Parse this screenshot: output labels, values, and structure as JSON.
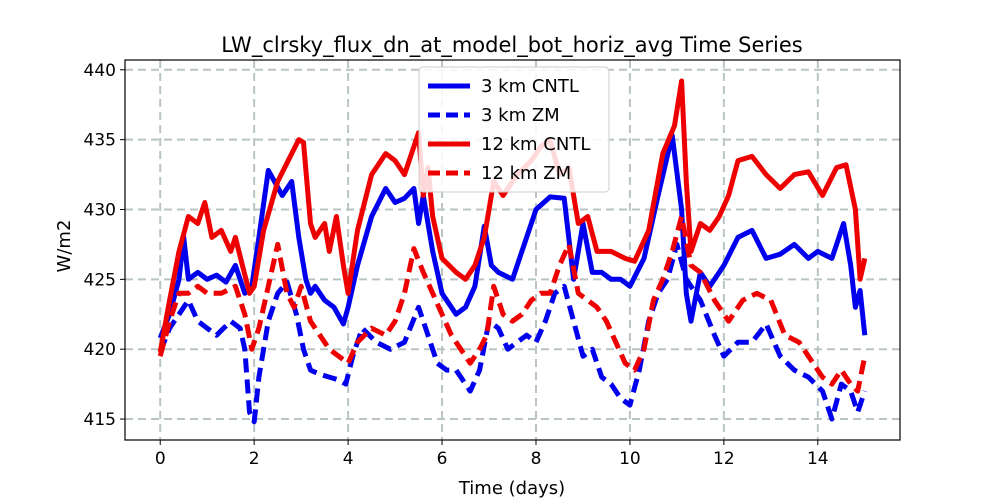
{
  "chart_data": {
    "type": "line",
    "title": "LW_clrsky_flux_dn_at_model_bot_horiz_avg Time Series",
    "xlabel": "Time (days)",
    "ylabel": "W/m2",
    "xlim": [
      -0.75,
      15.75
    ],
    "ylim": [
      413.5,
      440.7
    ],
    "xticks": [
      0,
      2,
      4,
      6,
      8,
      10,
      12,
      14
    ],
    "yticks": [
      415,
      420,
      425,
      430,
      435,
      440
    ],
    "grid": true,
    "legend_position": "top-center",
    "series": [
      {
        "name": "3 km CNTL",
        "color": "#0000ee",
        "style": "solid",
        "x": [
          0,
          0.2,
          0.4,
          0.5,
          0.6,
          0.8,
          1.0,
          1.2,
          1.4,
          1.6,
          1.8,
          1.95,
          2.1,
          2.3,
          2.6,
          2.8,
          2.95,
          3.1,
          3.2,
          3.3,
          3.5,
          3.7,
          3.9,
          4.0,
          4.2,
          4.5,
          4.8,
          5.0,
          5.2,
          5.4,
          5.5,
          5.6,
          5.8,
          6.0,
          6.3,
          6.5,
          6.7,
          6.9,
          7.05,
          7.2,
          7.5,
          7.8,
          8.0,
          8.3,
          8.6,
          8.8,
          9.0,
          9.2,
          9.4,
          9.6,
          9.8,
          10.0,
          10.3,
          10.6,
          10.9,
          11.1,
          11.2,
          11.3,
          11.5,
          11.7,
          12.0,
          12.3,
          12.6,
          12.9,
          13.2,
          13.5,
          13.8,
          14.0,
          14.3,
          14.55,
          14.7,
          14.8,
          14.9,
          15.0
        ],
        "values": [
          420.8,
          422.5,
          425.0,
          428.0,
          425.0,
          425.5,
          425.0,
          425.3,
          424.8,
          426.0,
          424.0,
          424.5,
          428.0,
          432.8,
          431.0,
          432.0,
          428.0,
          425.0,
          424.0,
          424.5,
          423.5,
          423.0,
          421.8,
          423.0,
          426.0,
          429.5,
          431.5,
          430.5,
          430.8,
          431.5,
          429.0,
          431.0,
          427.0,
          424.0,
          422.5,
          423.0,
          424.5,
          428.8,
          426.0,
          425.5,
          425.0,
          428.0,
          430.0,
          430.9,
          430.8,
          425.0,
          429.0,
          425.5,
          425.5,
          425.0,
          425.0,
          424.5,
          426.5,
          431.0,
          435.3,
          430.0,
          424.0,
          422.0,
          425.5,
          424.5,
          426.0,
          428.0,
          428.5,
          426.5,
          426.8,
          427.5,
          426.5,
          427.0,
          426.5,
          429.0,
          426.0,
          423.0,
          424.2,
          421.0
        ]
      },
      {
        "name": "3 km ZM",
        "color": "#0000ee",
        "style": "dashed",
        "x": [
          0,
          0.2,
          0.4,
          0.6,
          0.8,
          1.0,
          1.2,
          1.5,
          1.7,
          1.8,
          1.9,
          2.0,
          2.1,
          2.3,
          2.5,
          2.7,
          2.9,
          3.05,
          3.2,
          3.4,
          3.6,
          3.8,
          3.95,
          4.1,
          4.3,
          4.6,
          4.9,
          5.2,
          5.5,
          5.7,
          5.9,
          6.1,
          6.3,
          6.6,
          6.8,
          7.0,
          7.2,
          7.4,
          7.6,
          7.8,
          8.0,
          8.2,
          8.4,
          8.6,
          8.8,
          9.0,
          9.2,
          9.4,
          9.6,
          9.8,
          10.0,
          10.2,
          10.4,
          10.6,
          10.8,
          11.0,
          11.2,
          11.5,
          11.8,
          12.0,
          12.3,
          12.6,
          12.9,
          13.2,
          13.5,
          13.8,
          14.1,
          14.3,
          14.5,
          14.7,
          14.85,
          15.0
        ],
        "values": [
          419.8,
          421.5,
          422.5,
          423.5,
          422.0,
          421.5,
          421.0,
          422.0,
          421.5,
          420.0,
          415.5,
          414.8,
          418.0,
          422.0,
          424.0,
          424.8,
          422.5,
          420.0,
          418.5,
          418.2,
          418.0,
          417.8,
          417.5,
          419.5,
          421.5,
          420.5,
          420.0,
          420.5,
          423.0,
          421.0,
          419.0,
          418.5,
          418.5,
          417.0,
          418.5,
          422.0,
          421.5,
          420.0,
          420.5,
          421.0,
          420.5,
          422.0,
          424.0,
          424.5,
          422.0,
          419.5,
          420.0,
          418.0,
          417.5,
          416.5,
          416.0,
          418.5,
          422.0,
          424.0,
          425.0,
          427.5,
          425.0,
          423.5,
          421.0,
          419.5,
          420.5,
          420.5,
          421.8,
          419.5,
          418.5,
          418.0,
          417.0,
          415.0,
          417.5,
          417.0,
          415.5,
          417.0
        ]
      },
      {
        "name": "12 km CNTL",
        "color": "#ee0000",
        "style": "solid",
        "x": [
          0,
          0.2,
          0.4,
          0.6,
          0.8,
          0.95,
          1.1,
          1.3,
          1.5,
          1.6,
          1.75,
          1.9,
          2.0,
          2.2,
          2.5,
          2.8,
          2.95,
          3.05,
          3.2,
          3.3,
          3.5,
          3.6,
          3.75,
          3.9,
          4.0,
          4.2,
          4.5,
          4.8,
          5.0,
          5.2,
          5.4,
          5.5,
          5.6,
          5.7,
          5.8,
          6.0,
          6.3,
          6.5,
          6.7,
          6.9,
          7.1,
          7.3,
          7.6,
          7.9,
          8.1,
          8.3,
          8.5,
          8.7,
          8.9,
          9.1,
          9.3,
          9.6,
          9.9,
          10.1,
          10.4,
          10.7,
          10.95,
          11.1,
          11.2,
          11.3,
          11.5,
          11.7,
          11.9,
          12.1,
          12.3,
          12.6,
          12.9,
          13.2,
          13.5,
          13.8,
          14.1,
          14.4,
          14.6,
          14.8,
          14.9,
          15.0
        ],
        "values": [
          419.8,
          423.5,
          427.0,
          429.5,
          429.0,
          430.5,
          428.0,
          428.5,
          427.0,
          428.0,
          426.0,
          424.0,
          424.5,
          428.5,
          432.0,
          434.0,
          435.0,
          434.8,
          429.0,
          428.0,
          429.0,
          427.0,
          429.5,
          426.0,
          424.0,
          428.5,
          432.5,
          434.0,
          433.5,
          432.5,
          434.5,
          435.5,
          431.0,
          433.0,
          429.5,
          426.5,
          425.5,
          425.0,
          426.0,
          428.0,
          432.0,
          431.0,
          432.5,
          433.5,
          434.5,
          435.0,
          432.5,
          433.0,
          429.0,
          429.5,
          427.0,
          427.0,
          426.5,
          426.3,
          428.5,
          434.0,
          436.0,
          439.2,
          432.0,
          427.0,
          429.0,
          428.5,
          429.5,
          431.0,
          433.5,
          433.8,
          432.5,
          431.5,
          432.5,
          432.7,
          431.0,
          433.0,
          433.2,
          430.0,
          425.0,
          426.5
        ]
      },
      {
        "name": "12 km ZM",
        "color": "#ee0000",
        "style": "dashed",
        "x": [
          0,
          0.2,
          0.4,
          0.6,
          0.8,
          1.0,
          1.3,
          1.6,
          1.8,
          1.95,
          2.1,
          2.3,
          2.5,
          2.7,
          2.85,
          3.0,
          3.2,
          3.4,
          3.6,
          3.8,
          4.0,
          4.2,
          4.5,
          4.8,
          5.0,
          5.2,
          5.4,
          5.6,
          5.8,
          6.0,
          6.2,
          6.4,
          6.6,
          6.8,
          6.95,
          7.1,
          7.3,
          7.5,
          7.7,
          7.9,
          8.1,
          8.3,
          8.5,
          8.7,
          8.9,
          9.1,
          9.3,
          9.5,
          9.7,
          9.9,
          10.1,
          10.3,
          10.5,
          10.7,
          10.9,
          11.1,
          11.3,
          11.5,
          11.8,
          12.1,
          12.4,
          12.7,
          13.0,
          13.3,
          13.6,
          13.9,
          14.1,
          14.3,
          14.5,
          14.7,
          14.85,
          15.0
        ],
        "values": [
          419.5,
          422.0,
          424.0,
          424.0,
          424.5,
          424.0,
          424.0,
          424.5,
          422.5,
          420.0,
          421.5,
          424.5,
          427.5,
          424.0,
          423.0,
          424.5,
          422.0,
          421.0,
          420.0,
          419.5,
          419.0,
          420.5,
          421.5,
          421.0,
          422.0,
          424.0,
          427.2,
          425.5,
          424.0,
          422.5,
          421.0,
          420.0,
          419.0,
          420.0,
          421.0,
          424.5,
          422.5,
          422.0,
          422.5,
          423.5,
          424.0,
          424.0,
          426.0,
          427.5,
          424.0,
          423.5,
          423.0,
          422.0,
          420.5,
          419.0,
          418.5,
          420.0,
          423.5,
          425.0,
          427.0,
          429.5,
          426.0,
          425.5,
          423.5,
          422.0,
          423.5,
          424.0,
          423.5,
          421.0,
          420.5,
          419.0,
          418.0,
          417.5,
          418.5,
          417.5,
          417.0,
          419.5
        ]
      }
    ]
  }
}
